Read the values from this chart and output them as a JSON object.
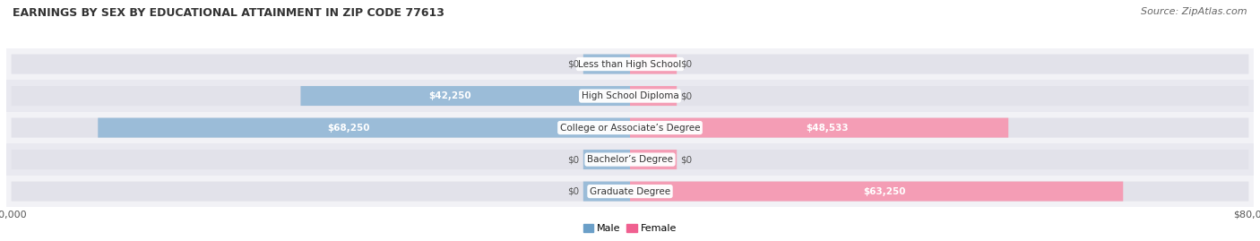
{
  "title": "EARNINGS BY SEX BY EDUCATIONAL ATTAINMENT IN ZIP CODE 77613",
  "source": "Source: ZipAtlas.com",
  "categories": [
    "Less than High School",
    "High School Diploma",
    "College or Associate’s Degree",
    "Bachelor’s Degree",
    "Graduate Degree"
  ],
  "male_values": [
    0,
    42250,
    68250,
    0,
    0
  ],
  "female_values": [
    0,
    0,
    48533,
    0,
    63250
  ],
  "male_color": "#9bbcd8",
  "female_color": "#f49db5",
  "xlim": 80000,
  "bar_height": 0.62,
  "row_bg_light": "#f2f2f6",
  "row_bg_dark": "#e9e9f0",
  "pill_bg": "#e2e2ea",
  "legend_male_color": "#6b9fc8",
  "legend_female_color": "#f06090",
  "stub_value": 6000,
  "title_fontsize": 9,
  "source_fontsize": 8,
  "value_fontsize": 7.5,
  "cat_fontsize": 7.5,
  "tick_fontsize": 8
}
